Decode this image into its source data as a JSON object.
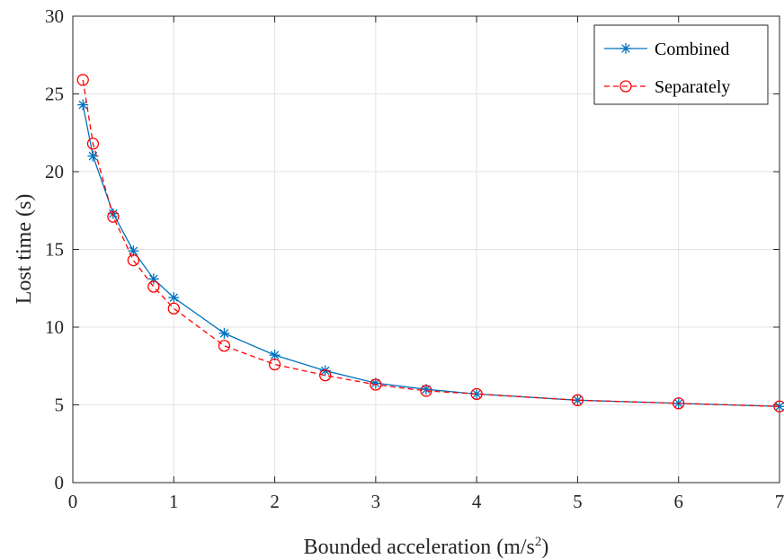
{
  "chart_data": {
    "type": "line",
    "xlabel_main": "Bounded acceleration (m/s",
    "xlabel_sup": "2",
    "xlabel_close": ")",
    "ylabel": "Lost time (s)",
    "xlim": [
      0,
      7
    ],
    "ylim": [
      0,
      30
    ],
    "x_ticks": [
      "0",
      "1",
      "2",
      "3",
      "4",
      "5",
      "6",
      "7"
    ],
    "y_ticks": [
      "0",
      "5",
      "10",
      "15",
      "20",
      "25",
      "30"
    ],
    "grid": true,
    "legend_position": "top-right",
    "series": [
      {
        "name": "Combined",
        "color": "#0072BD",
        "line_style": "solid",
        "marker": "asterisk",
        "x": [
          0.1,
          0.2,
          0.4,
          0.6,
          0.8,
          1.0,
          1.5,
          2.0,
          2.5,
          3.0,
          3.5,
          4.0,
          5.0,
          6.0,
          7.0
        ],
        "y": [
          24.3,
          21.0,
          17.3,
          14.9,
          13.1,
          11.9,
          9.6,
          8.2,
          7.2,
          6.4,
          6.0,
          5.7,
          5.3,
          5.1,
          4.9
        ]
      },
      {
        "name": "Separately",
        "color": "#FF0000",
        "line_style": "dashed",
        "marker": "circle",
        "x": [
          0.1,
          0.2,
          0.4,
          0.6,
          0.8,
          1.0,
          1.5,
          2.0,
          2.5,
          3.0,
          3.5,
          4.0,
          5.0,
          6.0,
          7.0
        ],
        "y": [
          25.9,
          21.8,
          17.1,
          14.3,
          12.6,
          11.2,
          8.8,
          7.6,
          6.9,
          6.3,
          5.9,
          5.7,
          5.3,
          5.1,
          4.9
        ]
      }
    ]
  }
}
